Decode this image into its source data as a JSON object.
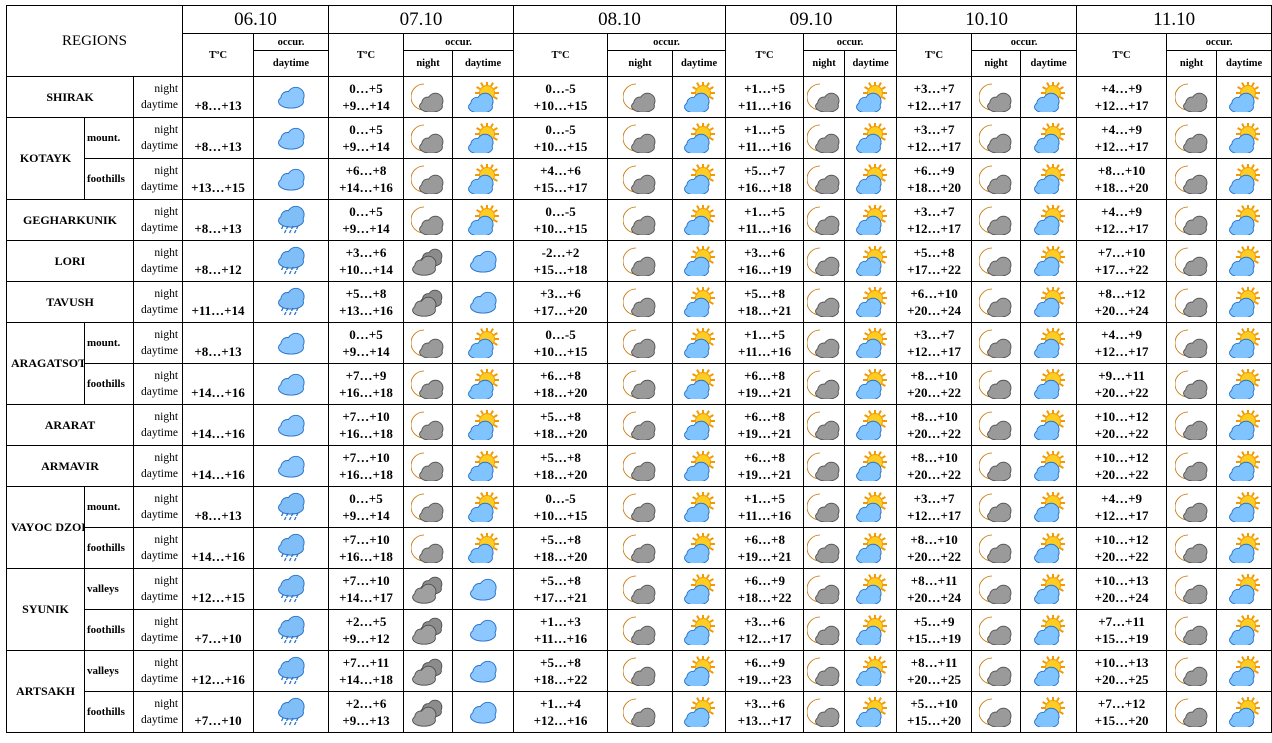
{
  "header": {
    "regions": "REGIONS",
    "temp": "TºC",
    "occur": "occur.",
    "night": "night",
    "daytime": "daytime",
    "dates": [
      "06.10",
      "07.10",
      "08.10",
      "09.10",
      "10.10",
      "11.10"
    ]
  },
  "regions": [
    {
      "name": "SHIRAK",
      "rows": [
        {
          "temps": [
            [
              "+8…+13"
            ],
            [
              "0…+5",
              "+9…+14"
            ],
            [
              "0…-5",
              "+10…+15"
            ],
            [
              "+1…+5",
              "+11…+16"
            ],
            [
              "+3…+7",
              "+12…+17"
            ],
            [
              "+4…+9",
              "+12…+17"
            ]
          ]
        }
      ]
    },
    {
      "name": "KOTAYK",
      "rows": [
        {
          "zone": "mount.",
          "temps": [
            [
              "+8…+13"
            ],
            [
              "0…+5",
              "+9…+14"
            ],
            [
              "0…-5",
              "+10…+15"
            ],
            [
              "+1…+5",
              "+11…+16"
            ],
            [
              "+3…+7",
              "+12…+17"
            ],
            [
              "+4…+9",
              "+12…+17"
            ]
          ]
        },
        {
          "zone": "foothills",
          "temps": [
            [
              "+13…+15"
            ],
            [
              "+6…+8",
              "+14…+16"
            ],
            [
              "+4…+6",
              "+15…+17"
            ],
            [
              "+5…+7",
              "+16…+18"
            ],
            [
              "+6…+9",
              "+18…+20"
            ],
            [
              "+8…+10",
              "+18…+20"
            ]
          ]
        }
      ]
    },
    {
      "name": "GEGHARKUNIK",
      "rows": [
        {
          "temps": [
            [
              "+8…+13"
            ],
            [
              "0…+5",
              "+9…+14"
            ],
            [
              "0…-5",
              "+10…+15"
            ],
            [
              "+1…+5",
              "+11…+16"
            ],
            [
              "+3…+7",
              "+12…+17"
            ],
            [
              "+4…+9",
              "+12…+17"
            ]
          ]
        }
      ]
    },
    {
      "name": "LORI",
      "rows": [
        {
          "temps": [
            [
              "+8…+12"
            ],
            [
              "+3…+6",
              "+10…+14"
            ],
            [
              "-2…+2",
              "+15…+18"
            ],
            [
              "+3…+6",
              "+16…+19"
            ],
            [
              "+5…+8",
              "+17…+22"
            ],
            [
              "+7…+10",
              "+17…+22"
            ]
          ]
        }
      ]
    },
    {
      "name": "TAVUSH",
      "rows": [
        {
          "temps": [
            [
              "+11…+14"
            ],
            [
              "+5…+8",
              "+13…+16"
            ],
            [
              "+3…+6",
              "+17…+20"
            ],
            [
              "+5…+8",
              "+18…+21"
            ],
            [
              "+6…+10",
              "+20…+24"
            ],
            [
              "+8…+12",
              "+20…+24"
            ]
          ]
        }
      ]
    },
    {
      "name": "ARAGATSOTN",
      "rows": [
        {
          "zone": "mount.",
          "temps": [
            [
              "+8…+13"
            ],
            [
              "0…+5",
              "+9…+14"
            ],
            [
              "0…-5",
              "+10…+15"
            ],
            [
              "+1…+5",
              "+11…+16"
            ],
            [
              "+3…+7",
              "+12…+17"
            ],
            [
              "+4…+9",
              "+12…+17"
            ]
          ]
        },
        {
          "zone": "foothills",
          "temps": [
            [
              "+14…+16"
            ],
            [
              "+7…+9",
              "+16…+18"
            ],
            [
              "+6…+8",
              "+18…+20"
            ],
            [
              "+6…+8",
              "+19…+21"
            ],
            [
              "+8…+10",
              "+20…+22"
            ],
            [
              "+9…+11",
              "+20…+22"
            ]
          ]
        }
      ]
    },
    {
      "name": "ARARAT",
      "rows": [
        {
          "temps": [
            [
              "+14…+16"
            ],
            [
              "+7…+10",
              "+16…+18"
            ],
            [
              "+5…+8",
              "+18…+20"
            ],
            [
              "+6…+8",
              "+19…+21"
            ],
            [
              "+8…+10",
              "+20…+22"
            ],
            [
              "+10…+12",
              "+20…+22"
            ]
          ]
        }
      ]
    },
    {
      "name": "ARMAVIR",
      "rows": [
        {
          "temps": [
            [
              "+14…+16"
            ],
            [
              "+7…+10",
              "+16…+18"
            ],
            [
              "+5…+8",
              "+18…+20"
            ],
            [
              "+6…+8",
              "+19…+21"
            ],
            [
              "+8…+10",
              "+20…+22"
            ],
            [
              "+10…+12",
              "+20…+22"
            ]
          ]
        }
      ]
    },
    {
      "name": "VAYOC DZOR",
      "rows": [
        {
          "zone": "mount.",
          "temps": [
            [
              "+8…+13"
            ],
            [
              "0…+5",
              "+9…+14"
            ],
            [
              "0…-5",
              "+10…+15"
            ],
            [
              "+1…+5",
              "+11…+16"
            ],
            [
              "+3…+7",
              "+12…+17"
            ],
            [
              "+4…+9",
              "+12…+17"
            ]
          ]
        },
        {
          "zone": "foothills",
          "temps": [
            [
              "+14…+16"
            ],
            [
              "+7…+10",
              "+16…+18"
            ],
            [
              "+5…+8",
              "+18…+20"
            ],
            [
              "+6…+8",
              "+19…+21"
            ],
            [
              "+8…+10",
              "+20…+22"
            ],
            [
              "+10…+12",
              "+20…+22"
            ]
          ]
        }
      ]
    },
    {
      "name": "SYUNIK",
      "rows": [
        {
          "zone": "valleys",
          "temps": [
            [
              "+12…+15"
            ],
            [
              "+7…+10",
              "+14…+17"
            ],
            [
              "+5…+8",
              "+17…+21"
            ],
            [
              "+6…+9",
              "+18…+22"
            ],
            [
              "+8…+11",
              "+20…+24"
            ],
            [
              "+10…+13",
              "+20…+24"
            ]
          ]
        },
        {
          "zone": "foothills",
          "temps": [
            [
              "+7…+10"
            ],
            [
              "+2…+5",
              "+9…+12"
            ],
            [
              "+1…+3",
              "+11…+16"
            ],
            [
              "+3…+6",
              "+12…+17"
            ],
            [
              "+5…+9",
              "+15…+19"
            ],
            [
              "+7…+11",
              "+15…+19"
            ]
          ]
        }
      ]
    },
    {
      "name": "ARTSAKH",
      "rows": [
        {
          "zone": "valleys",
          "temps": [
            [
              "+12…+16"
            ],
            [
              "+7…+11",
              "+14…+18"
            ],
            [
              "+5…+8",
              "+18…+22"
            ],
            [
              "+6…+9",
              "+19…+23"
            ],
            [
              "+8…+11",
              "+20…+25"
            ],
            [
              "+10…+13",
              "+20…+25"
            ]
          ]
        },
        {
          "zone": "foothills",
          "temps": [
            [
              "+7…+10"
            ],
            [
              "+2…+6",
              "+9…+13"
            ],
            [
              "+1…+4",
              "+12…+16"
            ],
            [
              "+3…+6",
              "+13…+17"
            ],
            [
              "+5…+10",
              "+15…+20"
            ],
            [
              "+7…+12",
              "+15…+20"
            ]
          ]
        }
      ]
    }
  ]
}
